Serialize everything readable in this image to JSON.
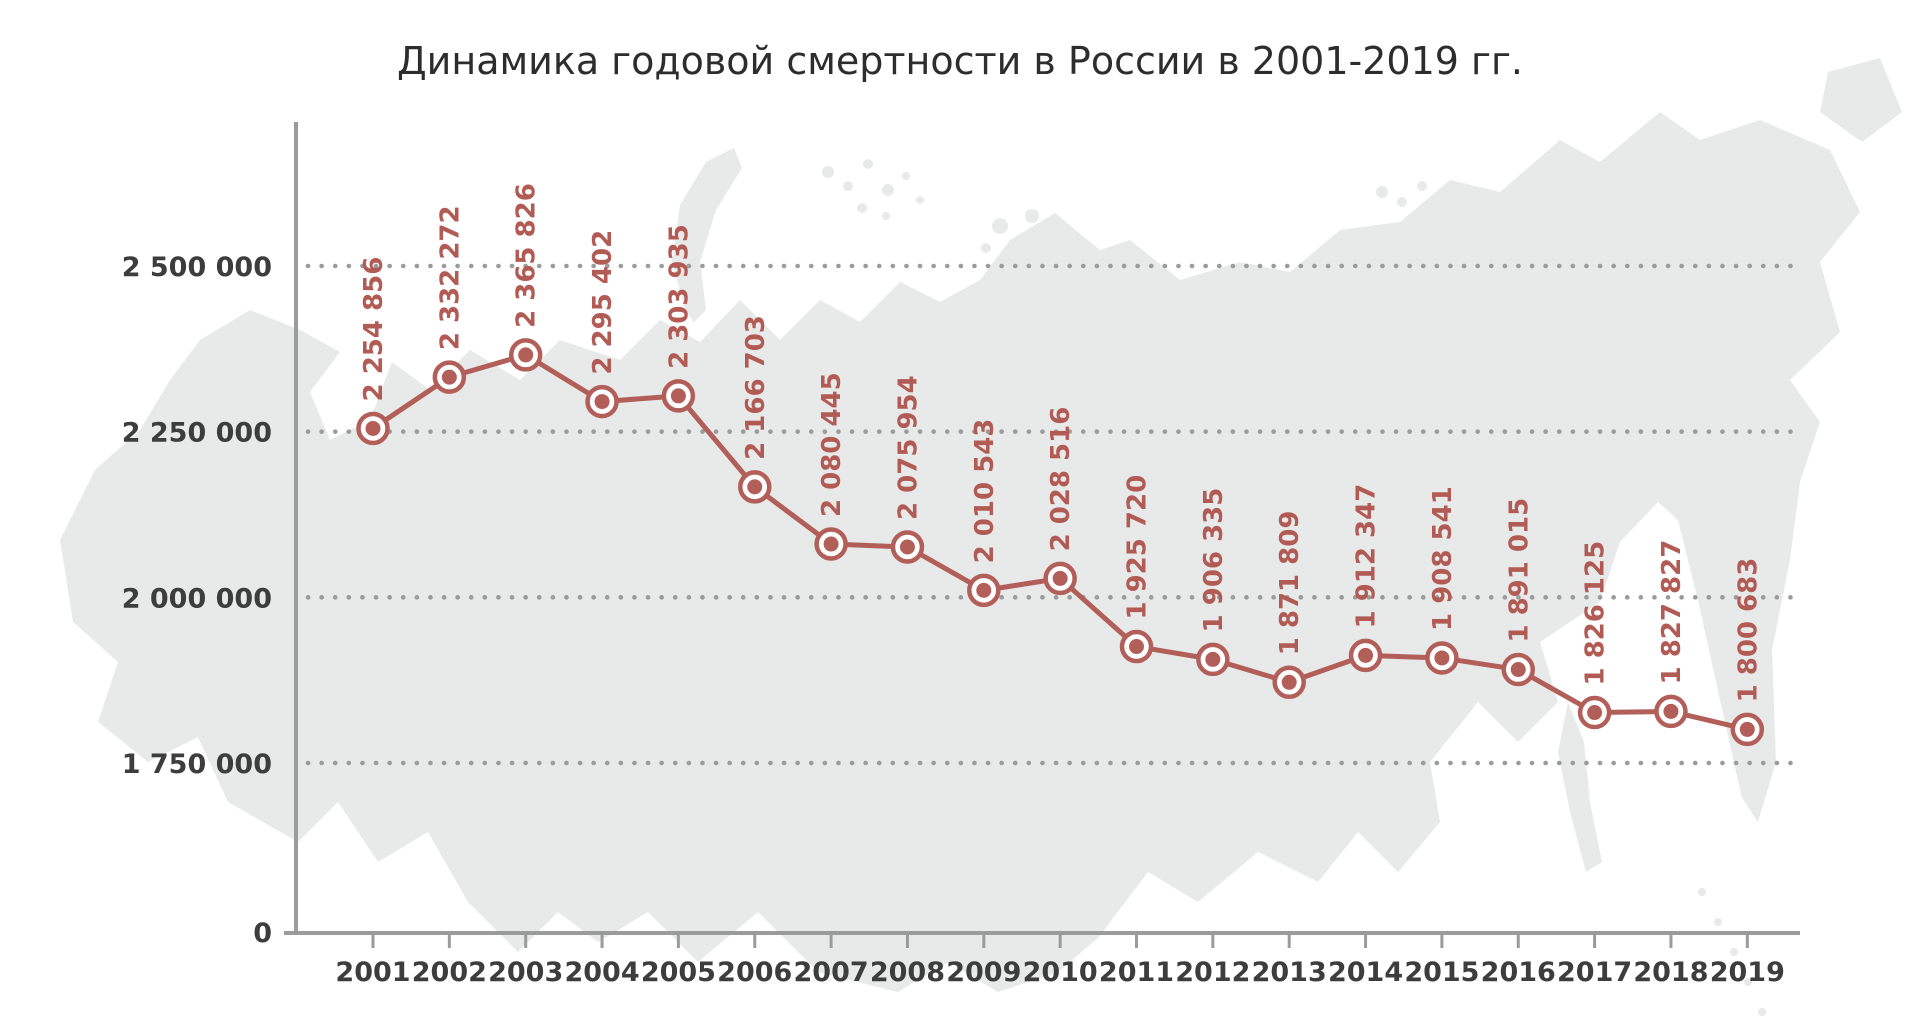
{
  "title": "Динамика годовой смертности в России в 2001-2019 гг.",
  "colors": {
    "line": "#b25f5a",
    "marker_fill": "#b25f5a",
    "marker_ring": "#b25f5a",
    "marker_gap": "#ffffff",
    "data_label": "#b25b55",
    "grid_dot": "#9b9b9b",
    "axis": "#9b9b9b",
    "tick_label": "#3d3d3d",
    "title": "#2d2d2d",
    "map": "#e8e9e9"
  },
  "chart_data": {
    "type": "line",
    "title": "Динамика годовой смертности в России в 2001-2019 гг.",
    "categories": [
      "2001",
      "2002",
      "2003",
      "2004",
      "2005",
      "2006",
      "2007",
      "2008",
      "2009",
      "2010",
      "2011",
      "2012",
      "2013",
      "2014",
      "2015",
      "2016",
      "2017",
      "2018",
      "2019"
    ],
    "series": [
      {
        "values": [
          2254856,
          2332272,
          2365826,
          2295402,
          2303935,
          2166703,
          2080445,
          2075954,
          2010543,
          2028516,
          1925720,
          1906335,
          1871809,
          1912347,
          1908541,
          1891015,
          1826125,
          1827827,
          1800683
        ],
        "point_labels": [
          "2 254 856",
          "2 332 272",
          "2 365 826",
          "2 295 402",
          "2 303 935",
          "2 166 703",
          "2 080 445",
          "2 075 954",
          "2 010 543",
          "2 028 516",
          "1 925 720",
          "1 906 335",
          "1 871 809",
          "1 912 347",
          "1 908 541",
          "1 891 015",
          "1 826 125",
          "1 827 827",
          "1 800 683"
        ]
      }
    ],
    "y_axis": {
      "tick_values": [
        2500000,
        2250000,
        2000000,
        1750000
      ],
      "tick_labels": [
        "2 500 000",
        "2 250 000",
        "2 000 000",
        "1 750 000"
      ],
      "origin_label": "0",
      "grid": "dotted",
      "range_shown": [
        1750000,
        2500000
      ],
      "broken_to_zero": true
    },
    "x_axis": {
      "tick_labels": [
        "2001",
        "2002",
        "2003",
        "2004",
        "2005",
        "2006",
        "2007",
        "2008",
        "2009",
        "2010",
        "2011",
        "2012",
        "2013",
        "2014",
        "2015",
        "2016",
        "2017",
        "2018",
        "2019"
      ]
    },
    "legend": "none"
  }
}
